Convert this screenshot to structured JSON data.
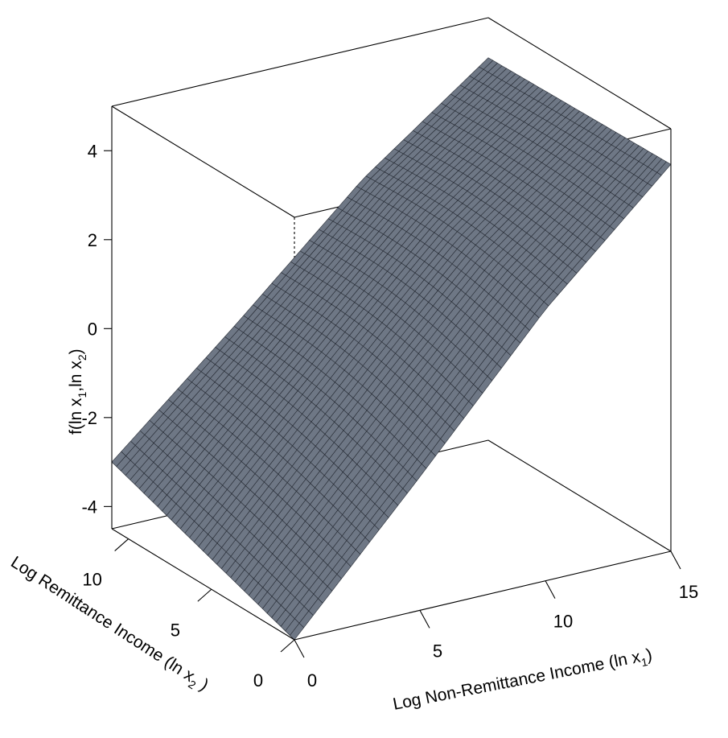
{
  "chart_data": {
    "type": "surface3d",
    "title": "",
    "x_axis": {
      "label_main": "Log Non-Remittance Income (ln x",
      "label_sub": "1",
      "label_close": ")",
      "range": [
        0,
        15
      ],
      "ticks": [
        0,
        5,
        10,
        15
      ]
    },
    "y_axis": {
      "label_main": "Log Remittance Income (ln x",
      "label_sub": "2",
      "label_close": " )",
      "range": [
        0,
        11
      ],
      "ticks": [
        0,
        5,
        10
      ]
    },
    "z_axis": {
      "label_f": "f(ln x",
      "label_sub1": "1",
      "label_mid": ",ln x",
      "label_sub2": "2",
      "label_close": ")",
      "range": [
        -4.5,
        5
      ],
      "ticks": [
        4,
        2,
        0,
        -2,
        -4
      ]
    },
    "surface": {
      "description_fn": "z rises with ln x1 (about -4.5 at x1=0 to 4 at x1=15) and is nearly flat in ln x2, with mild curvature",
      "x_knots": [
        0,
        5,
        10,
        15
      ],
      "z_at_x_knots": [
        -4.5,
        -1.5,
        1.6,
        4.2
      ],
      "corner_values": {
        "x0_y0": -4.5,
        "x15_y0": 4.2,
        "x0_y11": -3.0,
        "x15_y11": 4.1
      },
      "grid_x": 40,
      "grid_y": 40
    },
    "colors": {
      "surface_fill": "#6e7785",
      "mesh_line": "#252a33",
      "box_line": "#000000"
    },
    "grid": false,
    "box": true
  }
}
